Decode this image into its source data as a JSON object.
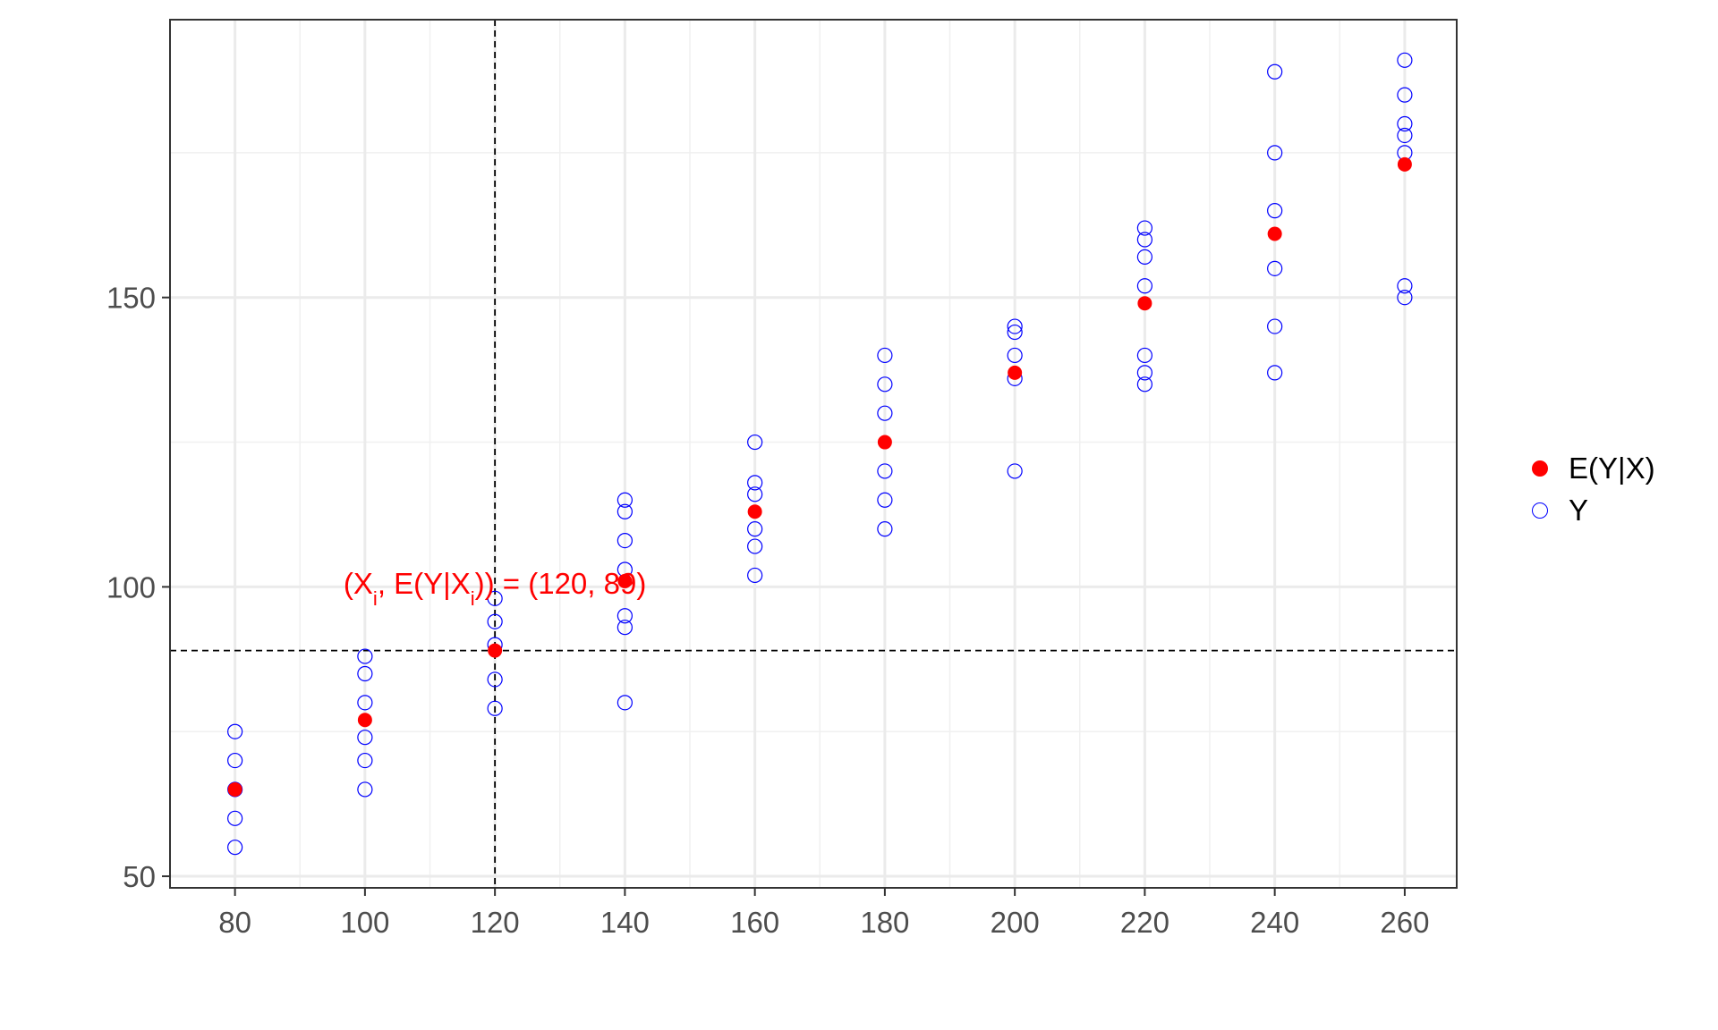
{
  "chart_data": {
    "type": "scatter",
    "title": "",
    "xlabel": "",
    "ylabel": "",
    "xlim": [
      70,
      268
    ],
    "ylim": [
      48,
      198
    ],
    "x_ticks": [
      80,
      100,
      120,
      140,
      160,
      180,
      200,
      220,
      240,
      260
    ],
    "y_ticks": [
      50,
      100,
      150
    ],
    "grid": true,
    "legend_position": "right",
    "series": [
      {
        "name": "Y",
        "marker": "open-circle",
        "color": "#0000ff",
        "points": [
          [
            80,
            55
          ],
          [
            80,
            60
          ],
          [
            80,
            65
          ],
          [
            80,
            70
          ],
          [
            80,
            75
          ],
          [
            100,
            65
          ],
          [
            100,
            70
          ],
          [
            100,
            74
          ],
          [
            100,
            80
          ],
          [
            100,
            85
          ],
          [
            100,
            88
          ],
          [
            120,
            79
          ],
          [
            120,
            84
          ],
          [
            120,
            90
          ],
          [
            120,
            94
          ],
          [
            120,
            98
          ],
          [
            140,
            80
          ],
          [
            140,
            93
          ],
          [
            140,
            95
          ],
          [
            140,
            103
          ],
          [
            140,
            108
          ],
          [
            140,
            113
          ],
          [
            140,
            115
          ],
          [
            160,
            102
          ],
          [
            160,
            107
          ],
          [
            160,
            110
          ],
          [
            160,
            116
          ],
          [
            160,
            118
          ],
          [
            160,
            125
          ],
          [
            180,
            110
          ],
          [
            180,
            115
          ],
          [
            180,
            120
          ],
          [
            180,
            130
          ],
          [
            180,
            135
          ],
          [
            180,
            140
          ],
          [
            200,
            120
          ],
          [
            200,
            136
          ],
          [
            200,
            140
          ],
          [
            200,
            144
          ],
          [
            200,
            145
          ],
          [
            220,
            135
          ],
          [
            220,
            137
          ],
          [
            220,
            140
          ],
          [
            220,
            152
          ],
          [
            220,
            157
          ],
          [
            220,
            160
          ],
          [
            220,
            162
          ],
          [
            240,
            137
          ],
          [
            240,
            145
          ],
          [
            240,
            155
          ],
          [
            240,
            165
          ],
          [
            240,
            175
          ],
          [
            240,
            189
          ],
          [
            260,
            150
          ],
          [
            260,
            152
          ],
          [
            260,
            175
          ],
          [
            260,
            178
          ],
          [
            260,
            180
          ],
          [
            260,
            185
          ],
          [
            260,
            191
          ]
        ]
      },
      {
        "name": "E(Y|X)",
        "marker": "filled-circle",
        "color": "#ff0000",
        "points": [
          [
            80,
            65
          ],
          [
            100,
            77
          ],
          [
            120,
            89
          ],
          [
            140,
            101
          ],
          [
            160,
            113
          ],
          [
            180,
            125
          ],
          [
            200,
            137
          ],
          [
            220,
            149
          ],
          [
            240,
            161
          ],
          [
            260,
            173
          ]
        ]
      }
    ],
    "reference_lines": {
      "vertical_x": 120,
      "horizontal_y": 89,
      "style": "dashed"
    },
    "annotation": {
      "text_parts": [
        "(X",
        "i",
        ", E(Y|X",
        "i",
        "))",
        " = ",
        "(120, 89)"
      ],
      "color": "#ff0000",
      "anchor_data": [
        120,
        98.8
      ]
    }
  },
  "legend": {
    "items": [
      {
        "label": "E(Y|X)",
        "style": "filled",
        "color": "#ff0000"
      },
      {
        "label": "Y",
        "style": "open",
        "color": "#0000ff"
      }
    ]
  }
}
